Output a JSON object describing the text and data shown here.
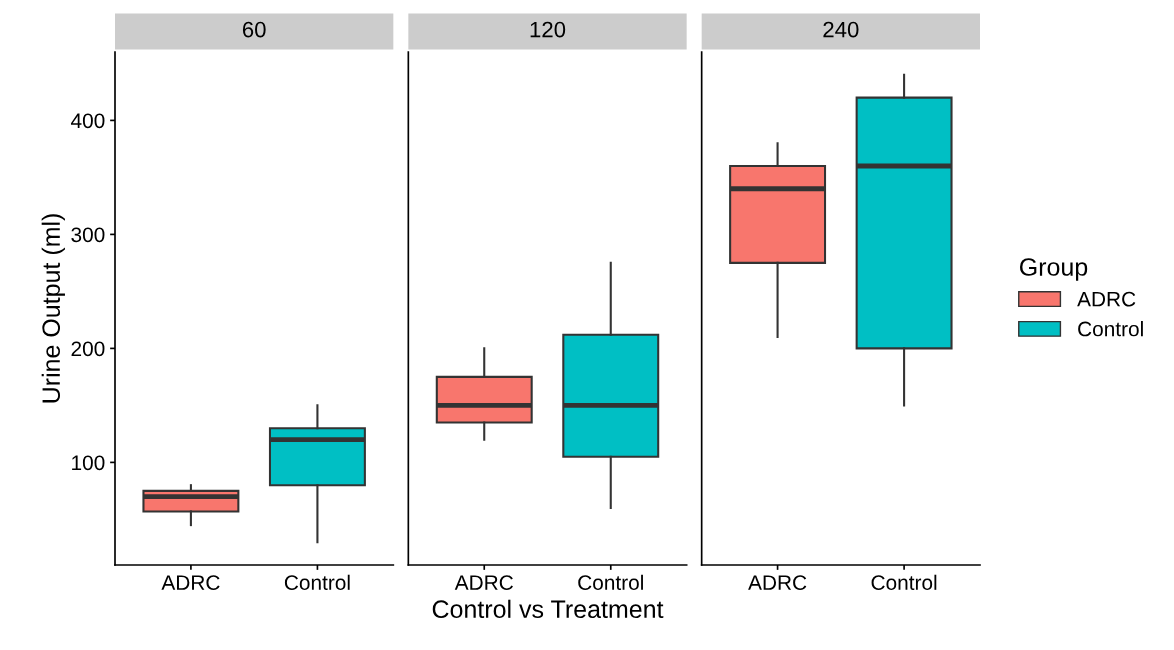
{
  "chart_data": [
    {
      "type": "box",
      "title": "60",
      "ylabel": "Urine Output (ml)",
      "legend_title": "Group",
      "categories": [
        "ADRC",
        "Control"
      ],
      "ylim": [
        10,
        460
      ],
      "yticks": [
        100,
        200,
        300,
        400
      ],
      "grid": false,
      "legend": "right",
      "series": [
        {
          "name": "ADRC",
          "color": "#f8766d",
          "boxes": [
            {
              "low": 45,
              "q1": 57,
              "median": 70,
              "q3": 75,
              "high": 80
            },
            null
          ]
        },
        {
          "name": "Control",
          "color": "#00bfc4",
          "boxes": [
            null,
            {
              "low": 30,
              "q1": 80,
              "median": 120,
              "q3": 130,
              "high": 150
            }
          ]
        }
      ]
    },
    {
      "type": "box",
      "title": "120",
      "xlabel": "Control vs Treatment",
      "categories": [
        "ADRC",
        "Control"
      ],
      "ylim": [
        10,
        460
      ],
      "yticks": [
        100,
        200,
        300,
        400
      ],
      "tick_labels": "x",
      "grid": false,
      "legend": false,
      "series": [
        {
          "color": "#f8766d",
          "boxes": [
            {
              "low": 120,
              "q1": 135,
              "median": 150,
              "q3": 175,
              "high": 200
            },
            null
          ]
        },
        {
          "color": "#00bfc4",
          "boxes": [
            null,
            {
              "low": 60,
              "q1": 105,
              "median": 150,
              "q3": 212,
              "high": 275
            }
          ]
        }
      ]
    },
    {
      "type": "box",
      "title": "240",
      "categories": [
        "ADRC",
        "Control"
      ],
      "ylim": [
        10,
        460
      ],
      "yticks": [
        100,
        200,
        300,
        400
      ],
      "tick_labels": "x",
      "grid": false,
      "legend": false,
      "series": [
        {
          "color": "#f8766d",
          "boxes": [
            {
              "low": 210,
              "q1": 275,
              "median": 340,
              "q3": 360,
              "high": 380
            },
            null
          ]
        },
        {
          "color": "#00bfc4",
          "boxes": [
            null,
            {
              "low": 150,
              "q1": 200,
              "median": 360,
              "q3": 420,
              "high": 440
            }
          ]
        }
      ]
    }
  ]
}
